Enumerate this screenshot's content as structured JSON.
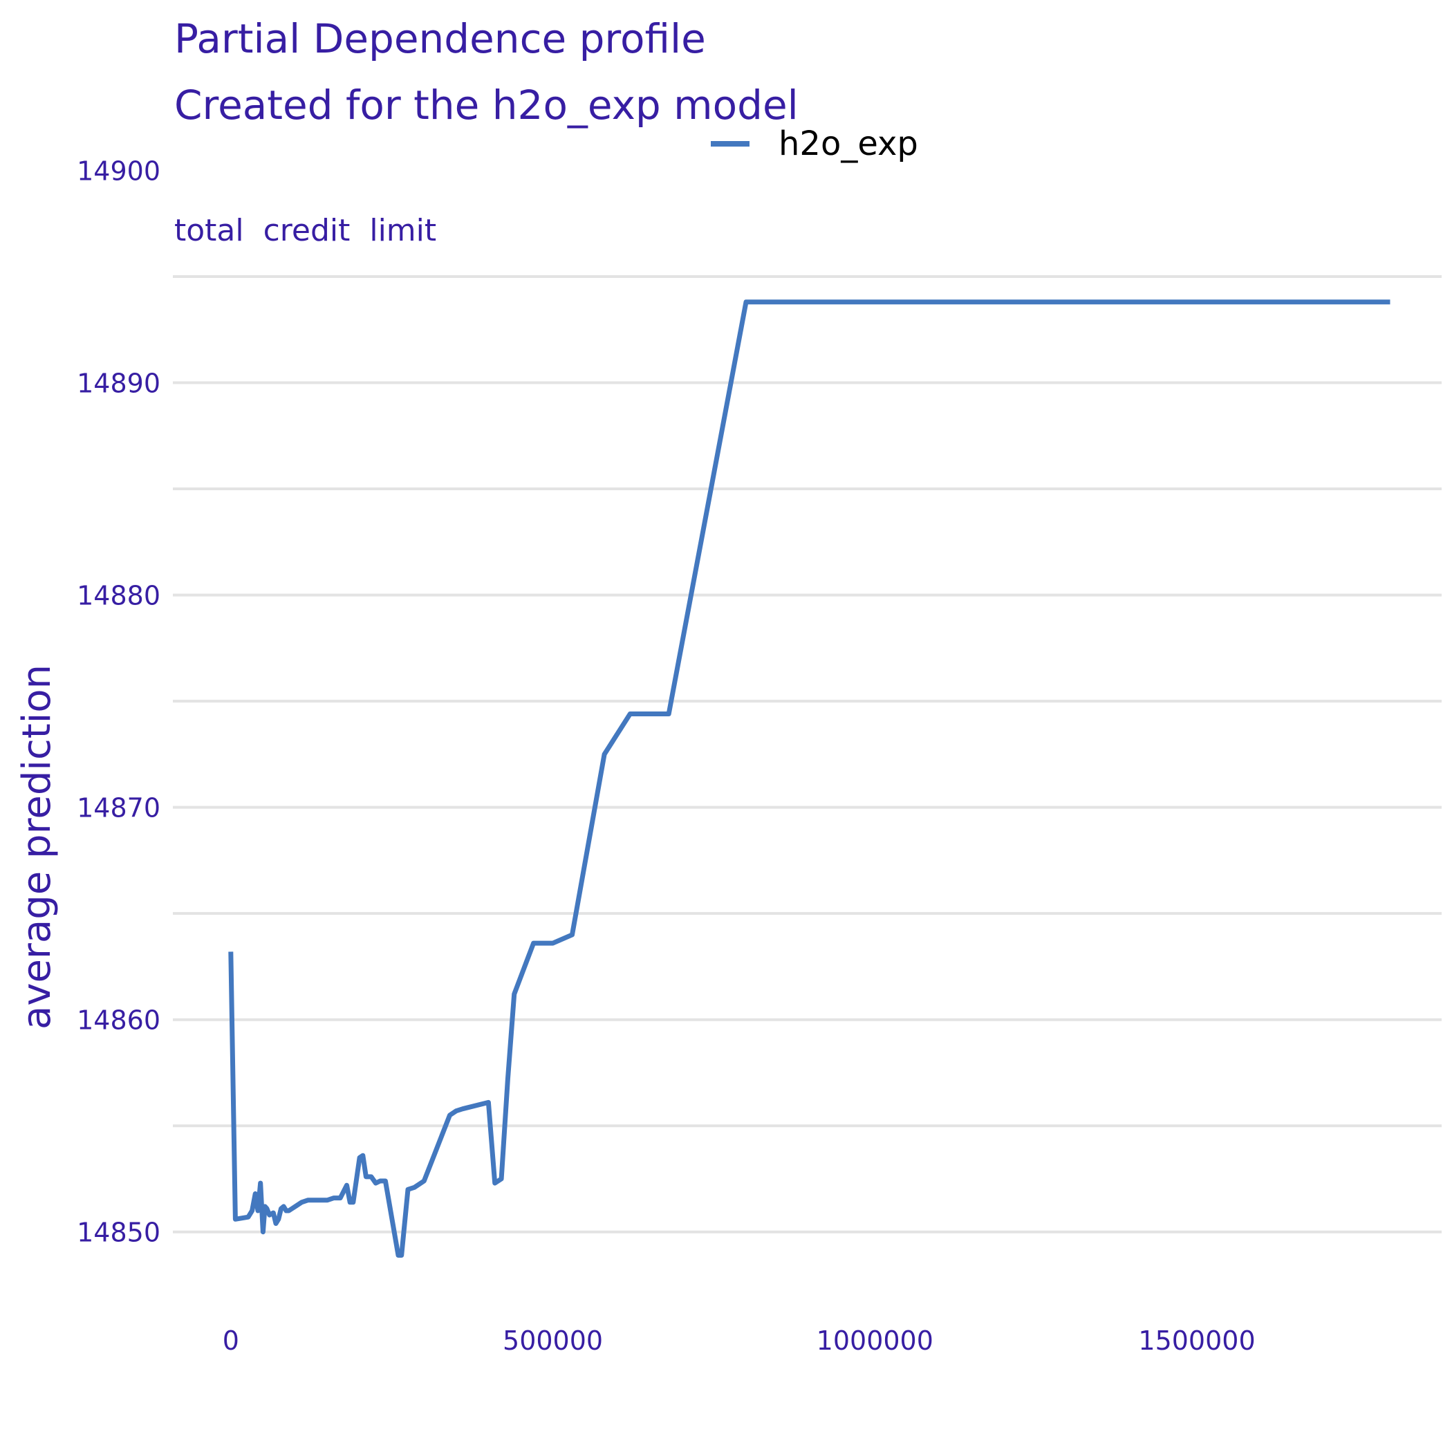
{
  "chart_data": {
    "type": "line",
    "title": "Partial Dependence profile",
    "subtitle": "Created for the h2o_exp model",
    "facet_label": "total_credit_limit",
    "xlabel": "",
    "ylabel": "average prediction",
    "xlim": [
      -90000,
      1880000
    ],
    "ylim": [
      14846.8,
      14895.0
    ],
    "x_ticks": [
      0,
      500000,
      1000000,
      1500000
    ],
    "y_ticks": [
      14850,
      14860,
      14870,
      14880,
      14890,
      14900
    ],
    "legend_position": "top",
    "grid": "horizontal",
    "series": [
      {
        "name": "h2o_exp",
        "color": "#4378bf",
        "x": [
          0,
          7000,
          27000,
          33000,
          38000,
          42000,
          46000,
          50000,
          53000,
          56000,
          60000,
          66000,
          70000,
          74000,
          78000,
          82000,
          86000,
          90000,
          95000,
          100000,
          110000,
          120000,
          130000,
          140000,
          150000,
          160000,
          170000,
          180000,
          185000,
          190000,
          200000,
          205000,
          210000,
          218000,
          225000,
          232000,
          240000,
          260000,
          265000,
          275000,
          285000,
          300000,
          340000,
          350000,
          360000,
          400000,
          410000,
          420000,
          430000,
          440000,
          470000,
          500000,
          530000,
          580000,
          620000,
          680000,
          800000,
          1800000
        ],
        "y": [
          14863.2,
          14850.6,
          14850.7,
          14851.0,
          14851.8,
          14851.0,
          14852.3,
          14850.0,
          14851.2,
          14851.1,
          14850.8,
          14850.9,
          14850.4,
          14850.6,
          14851.1,
          14851.2,
          14851.0,
          14851.0,
          14851.1,
          14851.2,
          14851.4,
          14851.5,
          14851.5,
          14851.5,
          14851.5,
          14851.6,
          14851.6,
          14852.2,
          14851.4,
          14851.4,
          14853.5,
          14853.6,
          14852.6,
          14852.6,
          14852.3,
          14852.4,
          14852.4,
          14848.9,
          14848.9,
          14852.0,
          14852.1,
          14852.4,
          14855.5,
          14855.7,
          14855.8,
          14856.1,
          14852.3,
          14852.5,
          14857.2,
          14861.2,
          14863.6,
          14863.6,
          14864.0,
          14872.5,
          14874.4,
          14874.4,
          14893.8,
          14893.8
        ]
      }
    ]
  }
}
